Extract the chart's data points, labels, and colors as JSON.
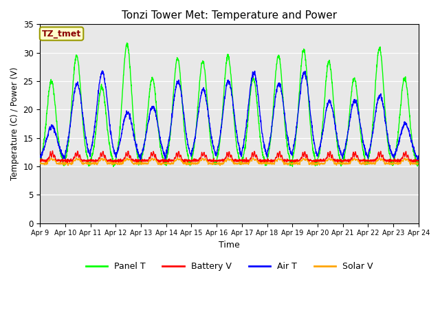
{
  "title": "Tonzi Tower Met: Temperature and Power",
  "xlabel": "Time",
  "ylabel": "Temperature (C) / Power (V)",
  "ylim": [
    0,
    35
  ],
  "yticks": [
    0,
    5,
    10,
    15,
    20,
    25,
    30,
    35
  ],
  "xlabels": [
    "Apr 9",
    "Apr 10",
    "Apr 11",
    "Apr 12",
    "Apr 13",
    "Apr 14",
    "Apr 15",
    "Apr 16",
    "Apr 17",
    "Apr 18",
    "Apr 19",
    "Apr 20",
    "Apr 21",
    "Apr 22",
    "Apr 23",
    "Apr 24"
  ],
  "annotation_text": "TZ_tmet",
  "annotation_color": "#8B0000",
  "annotation_bg": "#FFFFCC",
  "annotation_border": "#999900",
  "panel_t_color": "#00FF00",
  "battery_v_color": "#FF0000",
  "air_t_color": "#0000FF",
  "solar_v_color": "#FFA500",
  "bg_color": "#E8E8E8",
  "bg_upper_color": "#E0E0E0",
  "bg_lower_color": "#CCCCCC",
  "n_days": 15,
  "pts_per_day": 144,
  "panel_t_night": 10.5,
  "air_t_night": 11.0,
  "panel_t_peaks": [
    25.0,
    29.5,
    24.0,
    31.5,
    25.5,
    29.0,
    28.5,
    29.5,
    25.5,
    29.5,
    30.5,
    28.5,
    25.5,
    30.8,
    25.5
  ],
  "air_t_peaks": [
    17.0,
    24.5,
    26.5,
    19.5,
    20.5,
    25.0,
    23.5,
    25.0,
    26.5,
    24.5,
    26.5,
    21.5,
    21.5,
    22.5,
    17.5
  ]
}
